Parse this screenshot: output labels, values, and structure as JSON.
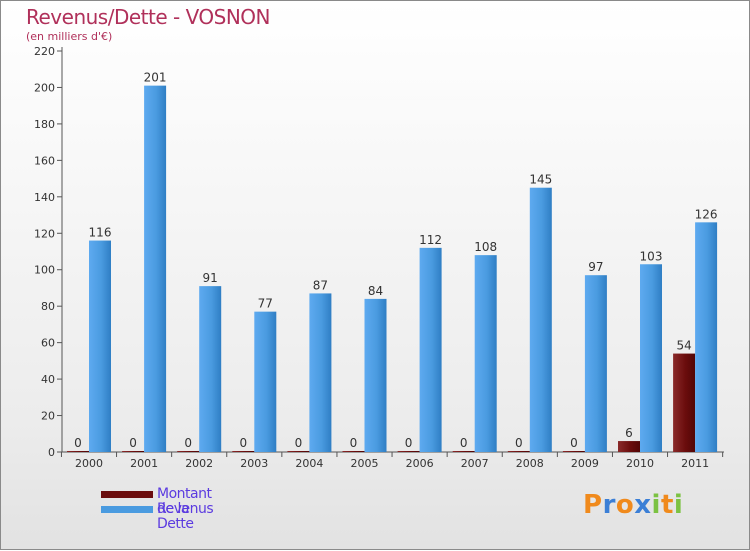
{
  "title": "Revenus/Dette - VOSNON",
  "subtitle": "(en milliers d'€)",
  "colors": {
    "dette": "#6b0d0d",
    "revenus": "#4a9be0",
    "title": "#b0305a",
    "legend_text": "#5b3be0"
  },
  "legend": [
    {
      "label": "Montant de la Dette",
      "color": "#6b0d0d"
    },
    {
      "label": "Revenus",
      "color": "#4a9be0"
    }
  ],
  "logo": {
    "letters": [
      "P",
      "r",
      "o",
      "x",
      "i",
      "t",
      "i"
    ]
  },
  "chart_data": {
    "type": "bar",
    "title": "Revenus/Dette - VOSNON",
    "ylabel": "(en milliers d'€)",
    "xlabel": "",
    "categories": [
      "2000",
      "2001",
      "2002",
      "2003",
      "2004",
      "2005",
      "2006",
      "2007",
      "2008",
      "2009",
      "2010",
      "2011"
    ],
    "series": [
      {
        "name": "Montant de la Dette",
        "color": "#6b0d0d",
        "values": [
          0,
          0,
          0,
          0,
          0,
          0,
          0,
          0,
          0,
          0,
          6,
          54
        ]
      },
      {
        "name": "Revenus",
        "color": "#4a9be0",
        "values": [
          116,
          201,
          91,
          77,
          87,
          84,
          112,
          108,
          145,
          97,
          103,
          126
        ]
      }
    ],
    "ylim": [
      0,
      220
    ],
    "yticks": [
      0,
      20,
      40,
      60,
      80,
      100,
      120,
      140,
      160,
      180,
      200,
      220
    ],
    "grid": false,
    "legend_position": "bottom-left"
  }
}
